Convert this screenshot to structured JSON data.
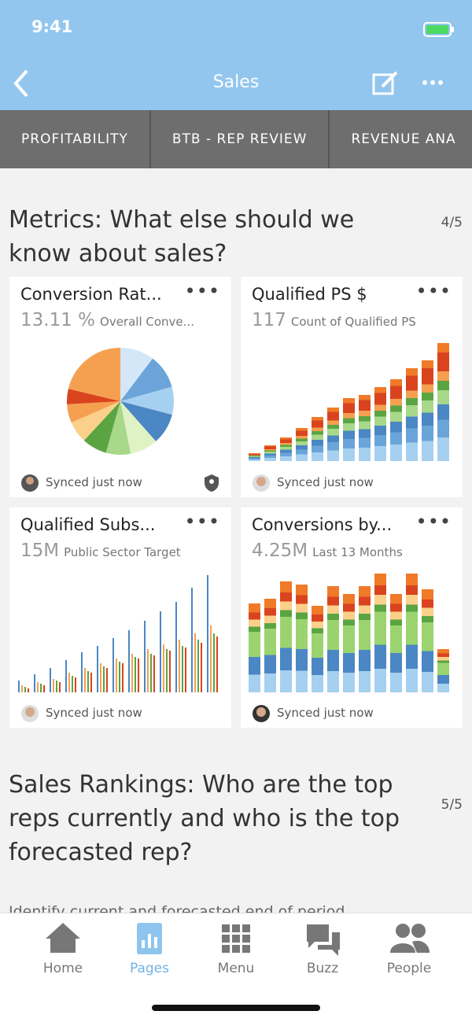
{
  "status_bar": {
    "time": "9:41"
  },
  "nav_bar": {
    "title": "Sales"
  },
  "tabs": [
    "PROFITABILITY",
    "BTB - REP REVIEW",
    "REVENUE ANA"
  ],
  "sections": [
    {
      "title": "Metrics: What else should we know about sales?",
      "pager": "4/5"
    },
    {
      "title": "Sales Rankings: Who are the top reps currently and who is the top forecasted rep?",
      "pager": "5/5",
      "text": "Identify current and forecasted end of period"
    }
  ],
  "cards": [
    {
      "title": "Conversion Rat...",
      "value": "13.11 %",
      "description": "Overall Conve...",
      "footer": "Synced just now"
    },
    {
      "title": "Qualified PS $",
      "value": "117",
      "description": "Count of Qualified PS",
      "footer": "Synced just now"
    },
    {
      "title": "Qualified Subs...",
      "value": "15M",
      "description": "Public Sector Target",
      "footer": "Synced just now"
    },
    {
      "title": "Conversions by...",
      "value": "4.25M",
      "description": "Last 13 Months",
      "footer": "Synced just now"
    }
  ],
  "tab_bar": [
    "Home",
    "Pages",
    "Menu",
    "Buzz",
    "People"
  ]
}
